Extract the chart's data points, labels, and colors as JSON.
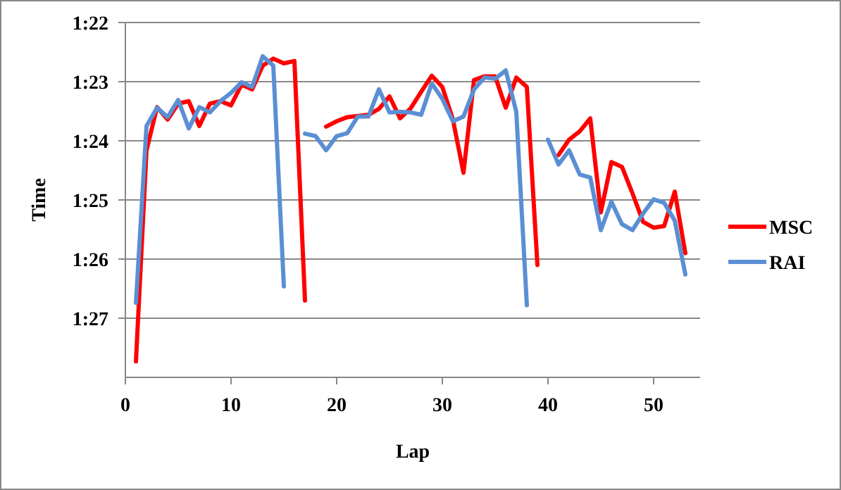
{
  "chart_data": {
    "type": "line",
    "xlabel": "Lap",
    "ylabel": "Time",
    "x": [
      1,
      2,
      3,
      4,
      5,
      6,
      7,
      8,
      9,
      10,
      11,
      12,
      13,
      14,
      15,
      16,
      17,
      18,
      19,
      20,
      21,
      22,
      23,
      24,
      25,
      26,
      27,
      28,
      29,
      30,
      31,
      32,
      33,
      34,
      35,
      36,
      37,
      38,
      39,
      40,
      41,
      42,
      43,
      44,
      45,
      46,
      47,
      48,
      49,
      50,
      51,
      52,
      53
    ],
    "series": [
      {
        "name": "MSC",
        "color": "#ff0000",
        "values": [
          87.73,
          84.16,
          83.43,
          83.64,
          83.37,
          83.33,
          83.75,
          83.37,
          83.33,
          83.4,
          83.05,
          83.13,
          82.73,
          82.61,
          82.69,
          82.65,
          86.7,
          null,
          83.76,
          83.67,
          83.6,
          83.58,
          83.56,
          83.46,
          83.25,
          83.62,
          83.45,
          83.17,
          82.9,
          83.09,
          83.64,
          84.54,
          82.97,
          82.91,
          82.91,
          83.44,
          82.93,
          83.09,
          86.1,
          null,
          84.24,
          83.98,
          83.84,
          83.62,
          85.21,
          84.36,
          84.44,
          84.89,
          85.37,
          85.47,
          85.44,
          84.86,
          85.9
        ]
      },
      {
        "name": "RAI",
        "color": "#5b8fd4",
        "values": [
          86.74,
          83.75,
          83.44,
          83.6,
          83.31,
          83.79,
          83.43,
          83.52,
          83.33,
          83.19,
          83.01,
          83.09,
          82.57,
          82.73,
          86.46,
          null,
          83.88,
          83.92,
          84.16,
          83.92,
          83.87,
          83.59,
          83.59,
          83.13,
          83.52,
          83.51,
          83.52,
          83.56,
          83.03,
          83.29,
          83.67,
          83.59,
          83.13,
          82.93,
          82.95,
          82.81,
          83.51,
          86.78,
          null,
          83.98,
          84.4,
          84.16,
          84.57,
          84.62,
          85.51,
          85.03,
          85.41,
          85.51,
          85.23,
          84.99,
          85.05,
          85.35,
          86.26
        ]
      }
    ],
    "xlim": [
      0,
      54.4
    ],
    "xticks": [
      0,
      10,
      20,
      30,
      40,
      50
    ],
    "ylim": [
      88,
      82
    ],
    "yticks": [
      {
        "value": 82,
        "label": "1:22"
      },
      {
        "value": 83,
        "label": "1:23"
      },
      {
        "value": 84,
        "label": "1:24"
      },
      {
        "value": 85,
        "label": "1:25"
      },
      {
        "value": 86,
        "label": "1:26"
      },
      {
        "value": 87,
        "label": "1:27"
      }
    ],
    "grid": "y",
    "legend": "right",
    "marker": "none",
    "line_style": "solid"
  }
}
